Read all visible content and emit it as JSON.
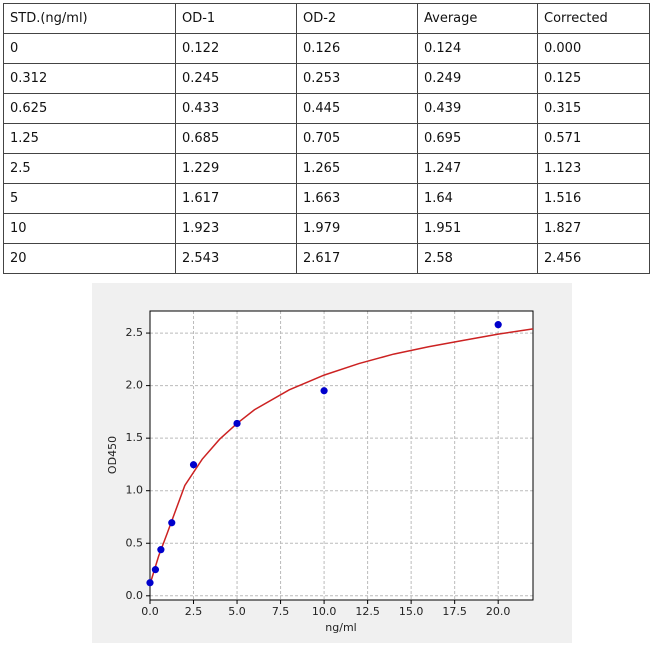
{
  "table": {
    "header": [
      "STD.(ng/ml)",
      "OD-1",
      "OD-2",
      "Average",
      "Corrected"
    ],
    "rows": [
      [
        "0",
        "0.122",
        "0.126",
        "0.124",
        "0.000"
      ],
      [
        "0.312",
        "0.245",
        "0.253",
        "0.249",
        "0.125"
      ],
      [
        "0.625",
        "0.433",
        "0.445",
        "0.439",
        "0.315"
      ],
      [
        "1.25",
        "0.685",
        "0.705",
        "0.695",
        "0.571"
      ],
      [
        "2.5",
        "1.229",
        "1.265",
        "1.247",
        "1.123"
      ],
      [
        "5",
        "1.617",
        "1.663",
        "1.64",
        "1.516"
      ],
      [
        "10",
        "1.923",
        "1.979",
        "1.951",
        "1.827"
      ],
      [
        "20",
        "2.543",
        "2.617",
        "2.58",
        "2.456"
      ]
    ]
  },
  "chart_data": {
    "type": "scatter",
    "xlabel": "ng/ml",
    "ylabel": "OD450",
    "xlim": [
      0,
      22
    ],
    "ylim": [
      -0.04,
      2.71
    ],
    "xticks": [
      {
        "value": 0,
        "label": "0.0"
      },
      {
        "value": 2.5,
        "label": "2.5"
      },
      {
        "value": 5,
        "label": "5.0"
      },
      {
        "value": 7.5,
        "label": "7.5"
      },
      {
        "value": 10,
        "label": "10.0"
      },
      {
        "value": 12.5,
        "label": "12.5"
      },
      {
        "value": 15,
        "label": "15.0"
      },
      {
        "value": 17.5,
        "label": "17.5"
      },
      {
        "value": 20,
        "label": "20.0"
      }
    ],
    "yticks": [
      {
        "value": 0,
        "label": "0.0"
      },
      {
        "value": 0.5,
        "label": "0.5"
      },
      {
        "value": 1,
        "label": "1.0"
      },
      {
        "value": 1.5,
        "label": "1.5"
      },
      {
        "value": 2,
        "label": "2.0"
      },
      {
        "value": 2.5,
        "label": "2.5"
      }
    ],
    "grid": true,
    "series": [
      {
        "type": "scatter",
        "color": "#0000cc",
        "x": [
          0,
          0.312,
          0.625,
          1.25,
          2.5,
          5,
          10,
          20
        ],
        "values": [
          0.124,
          0.249,
          0.439,
          0.695,
          1.247,
          1.64,
          1.951,
          2.58
        ]
      },
      {
        "type": "line",
        "color": "#cc2222",
        "x": [
          0,
          0.5,
          1,
          2,
          3,
          4,
          5,
          6,
          8,
          10,
          12,
          14,
          16,
          18,
          20,
          22
        ],
        "values": [
          0.11,
          0.38,
          0.6,
          1.05,
          1.3,
          1.49,
          1.64,
          1.77,
          1.96,
          2.1,
          2.21,
          2.3,
          2.37,
          2.43,
          2.49,
          2.54
        ]
      }
    ]
  }
}
